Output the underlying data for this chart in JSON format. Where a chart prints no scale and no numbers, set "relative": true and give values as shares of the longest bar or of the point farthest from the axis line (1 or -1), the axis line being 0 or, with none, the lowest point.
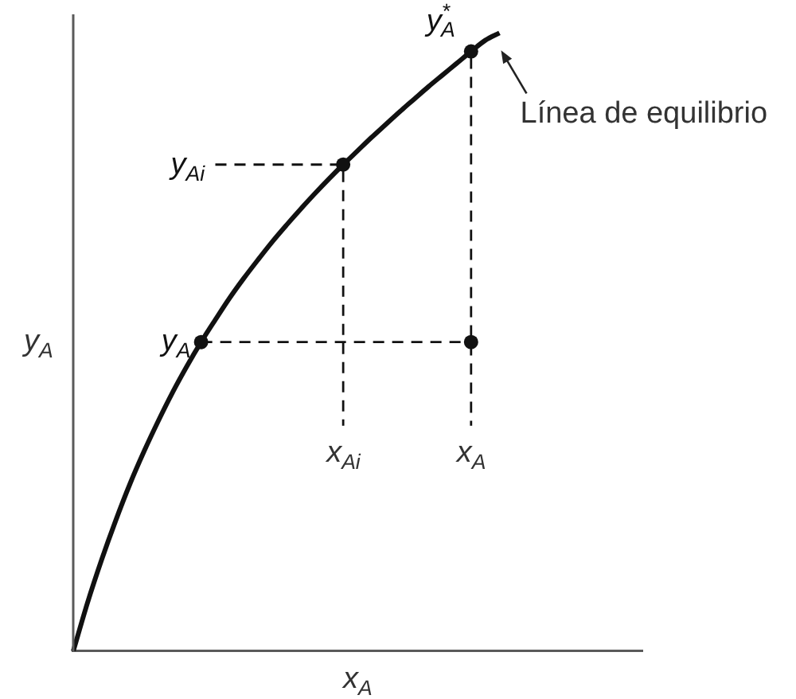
{
  "chart_data": {
    "type": "line",
    "relative": true,
    "xlabel": "x$_{A}$",
    "ylabel": "y$_{A}$",
    "categories": [
      null,
      null,
      null,
      null,
      null,
      null,
      null,
      null,
      null,
      null,
      null,
      null,
      null,
      null,
      null,
      null,
      null,
      null,
      null,
      null,
      null,
      null,
      null,
      null,
      null,
      null,
      null,
      null,
      null,
      null,
      null,
      null,
      null,
      null,
      null,
      null,
      null,
      null,
      null,
      null,
      null
    ],
    "series": [
      {
        "color": "#111111",
        "values": [
          0,
          0.078,
          0.148,
          0.212,
          0.271,
          0.324,
          0.373,
          0.419,
          0.461,
          0.5,
          0.536,
          0.571,
          0.603,
          0.633,
          0.662,
          0.689,
          0.715,
          0.74,
          0.764,
          0.787,
          0.809,
          0.831,
          0.852,
          0.873,
          0.893,
          0.913,
          0.932,
          0.951,
          0.97,
          0.988,
          1,
          null,
          null,
          null,
          null,
          null,
          null,
          null,
          null,
          null,
          null
        ]
      },
      {
        "name": "y$_{A}$",
        "color": "#111111",
        "marker": "circle",
        "values": [
          null,
          null,
          null,
          null,
          null,
          null,
          null,
          null,
          null,
          0.5,
          null,
          null,
          null,
          null,
          null,
          null,
          null,
          null,
          null,
          null,
          null,
          null,
          null,
          null,
          null,
          null,
          null,
          null,
          null,
          null,
          null,
          null,
          null,
          null,
          null,
          null,
          null,
          null,
          null,
          null,
          null
        ]
      },
      {
        "color": "#111111",
        "marker": "circle",
        "values": [
          null,
          null,
          null,
          null,
          null,
          null,
          null,
          null,
          null,
          null,
          null,
          null,
          null,
          null,
          null,
          null,
          null,
          null,
          null,
          0.787,
          null,
          null,
          null,
          null,
          null,
          null,
          null,
          null,
          null,
          null,
          null,
          null,
          null,
          null,
          null,
          null,
          null,
          null,
          null,
          null,
          null
        ]
      },
      {
        "name": "y$^{*}$$_{A}$",
        "color": "#111111",
        "marker": "circle",
        "values": [
          null,
          null,
          null,
          null,
          null,
          null,
          null,
          null,
          null,
          null,
          null,
          null,
          null,
          null,
          null,
          null,
          null,
          null,
          null,
          null,
          null,
          null,
          null,
          null,
          null,
          null,
          null,
          null,
          0.97,
          null,
          null,
          null,
          null,
          null,
          null,
          null,
          null,
          null,
          null,
          null,
          null
        ]
      },
      {
        "color": "#111111",
        "marker": "circle",
        "values": [
          null,
          null,
          null,
          null,
          null,
          null,
          null,
          null,
          null,
          null,
          null,
          null,
          null,
          null,
          null,
          null,
          null,
          null,
          null,
          null,
          null,
          null,
          null,
          null,
          null,
          null,
          null,
          null,
          0.5,
          null,
          null,
          null,
          null,
          null,
          null,
          null,
          null,
          null,
          null,
          null,
          null
        ]
      },
      {
        "color": "#111111",
        "line_style": "dashed",
        "values": [
          null,
          null,
          null,
          null,
          null,
          null,
          null,
          null,
          null,
          0.5,
          0.5,
          0.5,
          0.5,
          0.5,
          0.5,
          0.5,
          0.5,
          0.5,
          0.5,
          0.5,
          0.5,
          0.5,
          0.5,
          0.5,
          0.5,
          0.5,
          0.5,
          0.5,
          0.5,
          null,
          null,
          null,
          null,
          null,
          null,
          null,
          null,
          null,
          null,
          null,
          null
        ]
      },
      {
        "name": "y$_{Ai}$",
        "color": "#111111",
        "line_style": "dashed",
        "values": [
          null,
          null,
          null,
          null,
          null,
          null,
          null,
          null,
          null,
          null,
          0.787,
          0.787,
          0.787,
          0.787,
          0.787,
          0.787,
          0.787,
          0.787,
          0.787,
          0.787,
          null,
          null,
          null,
          null,
          null,
          null,
          null,
          null,
          null,
          null,
          null,
          null,
          null,
          null,
          null,
          null,
          null,
          null,
          null,
          null,
          null
        ]
      }
    ],
    "annotations": [
      "x$_{Ai}$",
      "x$_{A}$",
      "Línea de equilibrio"
    ]
  }
}
